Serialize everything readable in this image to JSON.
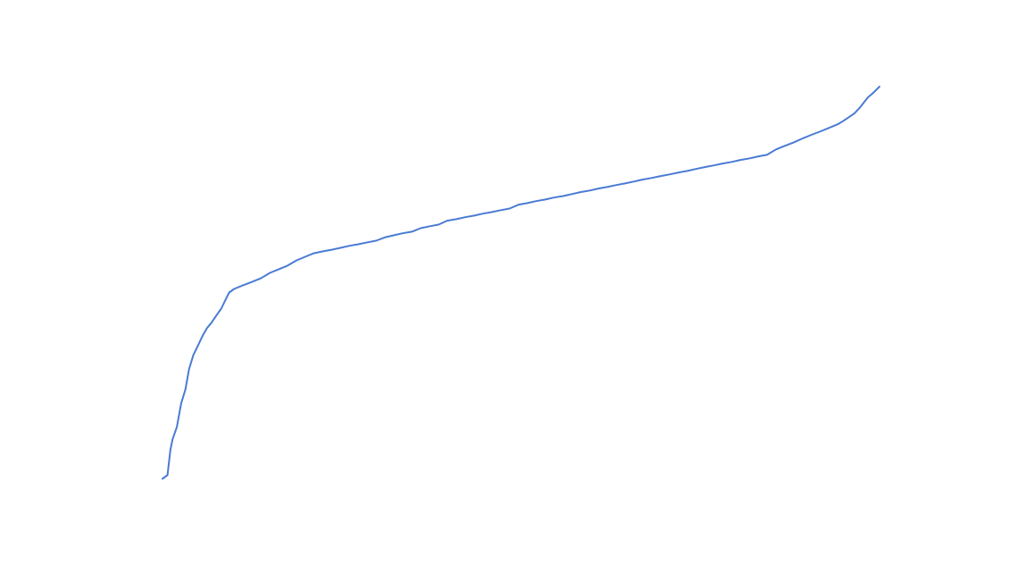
{
  "chart_data": {
    "type": "line",
    "title": "",
    "xlabel": "",
    "ylabel": "",
    "grid": false,
    "axes_visible": false,
    "xlim": [
      0,
      100
    ],
    "ylim": [
      0,
      100
    ],
    "series": [
      {
        "color": "#4a7bd3",
        "x": [
          0,
          0.7,
          1.1,
          1.4,
          2.0,
          2.6,
          3.2,
          3.7,
          4.3,
          5.0,
          5.6,
          6.2,
          6.8,
          7.5,
          8.2,
          8.8,
          9.3,
          10.0,
          11.2,
          12.5,
          13.7,
          15.0,
          16.2,
          17.4,
          18.7,
          19.9,
          21.1,
          22.4,
          23.6,
          24.9,
          26.1,
          27.3,
          28.6,
          29.8,
          31.1,
          32.3,
          33.5,
          34.8,
          36.0,
          37.3,
          38.5,
          39.7,
          41.0,
          42.2,
          43.5,
          44.7,
          45.9,
          47.2,
          48.4,
          49.7,
          50.9,
          52.1,
          53.4,
          54.6,
          55.9,
          57.1,
          58.3,
          59.6,
          60.8,
          62.0,
          63.3,
          64.5,
          65.8,
          67.0,
          68.2,
          69.5,
          70.7,
          72.0,
          73.2,
          74.4,
          75.7,
          76.9,
          78.2,
          79.4,
          80.6,
          81.9,
          83.1,
          84.3,
          85.6,
          86.8,
          88.1,
          89.3,
          90.5,
          91.8,
          93.0,
          94.2,
          95.0,
          95.8,
          96.5,
          97.2,
          97.8,
          98.4,
          99.0,
          99.5,
          100
        ],
        "y": [
          0,
          0.9,
          7.3,
          10.0,
          13.2,
          19.2,
          22.8,
          27.9,
          31.5,
          34.2,
          36.5,
          38.4,
          39.7,
          41.6,
          43.4,
          45.7,
          47.5,
          48.4,
          49.3,
          50.2,
          51.1,
          52.5,
          53.4,
          54.3,
          55.7,
          56.6,
          57.5,
          58.0,
          58.4,
          58.9,
          59.4,
          59.8,
          60.3,
          60.7,
          61.6,
          62.1,
          62.6,
          63.0,
          63.9,
          64.4,
          64.8,
          65.8,
          66.2,
          66.7,
          67.1,
          67.6,
          68.0,
          68.5,
          68.9,
          69.9,
          70.3,
          70.8,
          71.2,
          71.7,
          72.1,
          72.6,
          73.1,
          73.5,
          74.0,
          74.4,
          74.9,
          75.3,
          75.8,
          76.3,
          76.7,
          77.2,
          77.6,
          78.1,
          78.5,
          79.0,
          79.5,
          79.9,
          80.4,
          80.8,
          81.3,
          81.7,
          82.2,
          82.6,
          84.0,
          84.9,
          85.8,
          86.8,
          87.7,
          88.6,
          89.5,
          90.4,
          91.3,
          92.3,
          93.2,
          94.5,
          95.9,
          97.3,
          98.2,
          99.1,
          100
        ]
      }
    ]
  }
}
